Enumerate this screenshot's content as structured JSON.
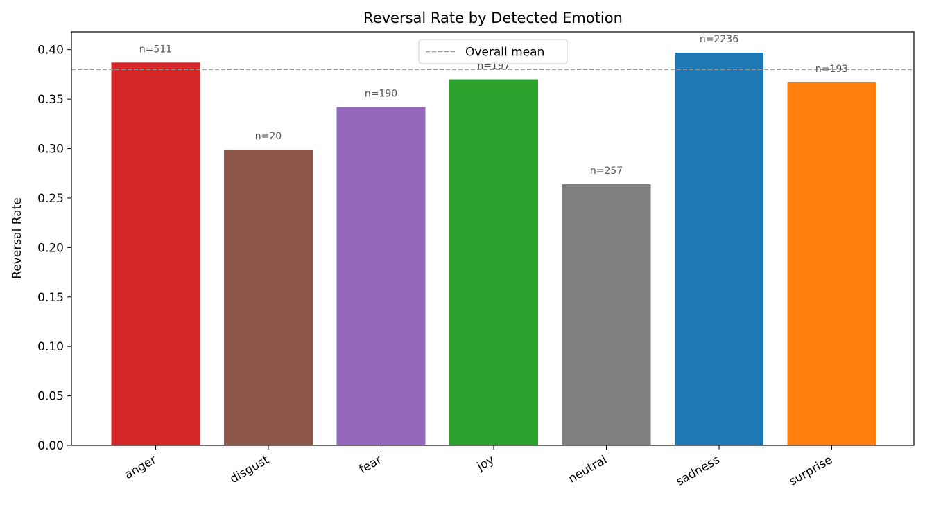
{
  "chart_data": {
    "type": "bar",
    "title": "Reversal Rate by Detected Emotion",
    "xlabel": "",
    "ylabel": "Reversal Rate",
    "ylim": [
      0,
      0.418
    ],
    "yticks": [
      "0.00",
      "0.05",
      "0.10",
      "0.15",
      "0.20",
      "0.25",
      "0.30",
      "0.35",
      "0.40"
    ],
    "categories": [
      "anger",
      "disgust",
      "fear",
      "joy",
      "neutral",
      "sadness",
      "surprise"
    ],
    "values": [
      0.387,
      0.299,
      0.342,
      0.37,
      0.264,
      0.397,
      0.367
    ],
    "counts": [
      "n=511",
      "n=20",
      "n=190",
      "n=197",
      "n=257",
      "n=2236",
      "n=193"
    ],
    "colors": [
      "#d62728",
      "#8c564b",
      "#9467bd",
      "#2ca02c",
      "#7f7f7f",
      "#1f77b4",
      "#ff7f0e"
    ],
    "mean": 0.38,
    "mean_color": "#999999",
    "legend": {
      "label": "Overall mean",
      "position": "upper-center"
    },
    "grid": false
  }
}
